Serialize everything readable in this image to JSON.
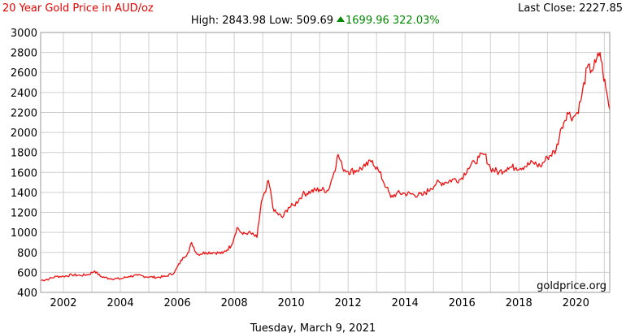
{
  "header": {
    "title": "20 Year Gold Price in AUD/oz",
    "last_close": "Last Close: 2227.85",
    "high_low": "High: 2843.98 Low: 509.69",
    "change": "1699.96 322.03%"
  },
  "footer": {
    "date": "Tuesday, March 9, 2021",
    "watermark": "goldprice.org"
  },
  "colors": {
    "title": "#e00000",
    "series": "#ee1111",
    "change_up": "#008800",
    "grid": "#cfcfcf",
    "frame": "#999999"
  },
  "chart_data": {
    "type": "line",
    "title": "20 Year Gold Price in AUD/oz",
    "xlabel": "",
    "ylabel": "",
    "xlim": [
      2001.2,
      2021.19
    ],
    "ylim": [
      400,
      3000
    ],
    "x_ticks": [
      2002,
      2004,
      2006,
      2008,
      2010,
      2012,
      2014,
      2016,
      2018,
      2020
    ],
    "y_ticks": [
      400,
      600,
      800,
      1000,
      1200,
      1400,
      1600,
      1800,
      2000,
      2200,
      2400,
      2600,
      2800,
      3000
    ],
    "grid": true,
    "legend": "none",
    "series": [
      {
        "x": [
          2001.2,
          2001.5,
          2001.75,
          2002.0,
          2002.3,
          2002.6,
          2002.9,
          2003.1,
          2003.3,
          2003.6,
          2004.0,
          2004.3,
          2004.6,
          2005.0,
          2005.3,
          2005.6,
          2005.9,
          2006.2,
          2006.4,
          2006.5,
          2006.7,
          2007.0,
          2007.3,
          2007.6,
          2007.9,
          2008.1,
          2008.3,
          2008.5,
          2008.8,
          2008.95,
          2009.1,
          2009.2,
          2009.4,
          2009.7,
          2009.9,
          2010.1,
          2010.4,
          2010.7,
          2011.0,
          2011.3,
          2011.5,
          2011.65,
          2011.8,
          2012.0,
          2012.3,
          2012.6,
          2012.85,
          2013.1,
          2013.35,
          2013.5,
          2013.7,
          2014.0,
          2014.3,
          2014.6,
          2014.9,
          2015.1,
          2015.4,
          2015.7,
          2015.95,
          2016.2,
          2016.45,
          2016.6,
          2016.8,
          2017.0,
          2017.3,
          2017.6,
          2017.9,
          2018.2,
          2018.5,
          2018.75,
          2019.0,
          2019.3,
          2019.5,
          2019.7,
          2019.9,
          2020.05,
          2020.2,
          2020.4,
          2020.55,
          2020.7,
          2020.85,
          2020.95,
          2021.05,
          2021.19
        ],
        "values": [
          520,
          535,
          560,
          560,
          575,
          570,
          580,
          615,
          560,
          540,
          535,
          560,
          570,
          555,
          550,
          560,
          600,
          750,
          800,
          900,
          780,
          800,
          800,
          790,
          870,
          1050,
          980,
          1000,
          950,
          1300,
          1400,
          1520,
          1210,
          1150,
          1250,
          1270,
          1380,
          1410,
          1430,
          1420,
          1600,
          1780,
          1650,
          1610,
          1620,
          1660,
          1720,
          1600,
          1450,
          1350,
          1390,
          1390,
          1380,
          1370,
          1440,
          1490,
          1500,
          1530,
          1530,
          1640,
          1700,
          1750,
          1780,
          1640,
          1600,
          1650,
          1650,
          1660,
          1700,
          1660,
          1750,
          1820,
          2050,
          2200,
          2150,
          2200,
          2350,
          2650,
          2620,
          2700,
          2800,
          2600,
          2450,
          2227
        ]
      }
    ]
  }
}
